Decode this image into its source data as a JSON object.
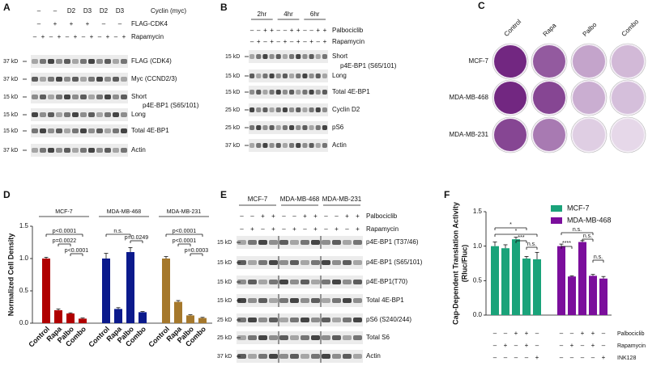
{
  "panels": {
    "A": {
      "letter": "A",
      "header_rows": [
        {
          "label": "Cyclin (myc)",
          "signs": [
            "–",
            "–",
            "D2",
            "D3",
            "D2",
            "D3"
          ]
        },
        {
          "label": "FLAG-CDK4",
          "signs": [
            "–",
            "+",
            "+",
            "+",
            "–",
            "–"
          ]
        },
        {
          "label": "Rapamycin",
          "signs": [
            "–",
            "+",
            "–",
            "+",
            "–",
            "+",
            "–",
            "+",
            "–",
            "+",
            "–",
            "+"
          ]
        }
      ],
      "blots": [
        {
          "kd": "37 kD",
          "label": "FLAG (CDK4)"
        },
        {
          "kd": "37 kD",
          "label": "Myc (CCND2/3)"
        },
        {
          "kd": "15 kD",
          "label": "Short"
        },
        {
          "kd": "15 kD",
          "label": "Long"
        },
        {
          "kd": "15 kD",
          "label": "Total 4E-BP1"
        },
        {
          "kd": "37 kD",
          "label": "Actin"
        }
      ],
      "group_label": "p4E-BP1 (S65/101)"
    },
    "B": {
      "letter": "B",
      "time_points": [
        "2hr",
        "4hr",
        "6hr"
      ],
      "header_rows": [
        {
          "label": "Palbociclib",
          "signs": [
            "–",
            "–",
            "+",
            "+",
            "–",
            "–",
            "+",
            "+",
            "–",
            "–",
            "+",
            "+"
          ]
        },
        {
          "label": "Rapamycin",
          "signs": [
            "–",
            "+",
            "–",
            "+",
            "–",
            "+",
            "–",
            "+",
            "–",
            "+",
            "–",
            "+"
          ]
        }
      ],
      "blots": [
        {
          "kd": "15 kD",
          "label": "Short"
        },
        {
          "kd": "15 kD",
          "label": "Long"
        },
        {
          "kd": "15 kD",
          "label": "Total 4E-BP1"
        },
        {
          "kd": "25 kD",
          "label": "Cyclin D2"
        },
        {
          "kd": "25 kD",
          "label": "pS6"
        },
        {
          "kd": "37 kD",
          "label": "Actin"
        }
      ],
      "group_label": "p4E-BP1 (S65/101)"
    },
    "C": {
      "letter": "C",
      "columns": [
        "Control",
        "Rapa",
        "Palbo",
        "Combo"
      ],
      "rows": [
        "MCF-7",
        "MDA-MB-468",
        "MDA-MB-231"
      ]
    },
    "E": {
      "letter": "E",
      "cell_lines": [
        "MCF-7",
        "MDA-MB-468",
        "MDA-MB-231"
      ],
      "header_rows": [
        {
          "label": "Palbociclib",
          "signs": [
            "–",
            "–",
            "+",
            "+",
            "–",
            "–",
            "+",
            "+",
            "–",
            "–",
            "+",
            "+"
          ]
        },
        {
          "label": "Rapamycin",
          "signs": [
            "–",
            "+",
            "–",
            "+",
            "–",
            "+",
            "–",
            "+",
            "–",
            "+",
            "–",
            "+"
          ]
        }
      ],
      "blots": [
        {
          "kd": "15 kD",
          "label": "p4E-BP1 (T37/46)"
        },
        {
          "kd": "15 kD",
          "label": "p4E-BP1 (S65/101)"
        },
        {
          "kd": "15 kD",
          "label": "p4E-BP1(T70)"
        },
        {
          "kd": "15 kD",
          "label": "Total 4E-BP1"
        },
        {
          "kd": "25 kD",
          "label": "pS6 (S240/244)"
        },
        {
          "kd": "25 kD",
          "label": "Total S6"
        },
        {
          "kd": "37 kD",
          "label": "Actin"
        }
      ]
    }
  },
  "chart_data": [
    {
      "type": "bar",
      "letter": "D",
      "ylabel": "Normalized Cell Density",
      "ylim": [
        0,
        1.5
      ],
      "yticks": [
        {
          "value": 0,
          "label": "0.0"
        },
        {
          "value": 0.5,
          "label": "0.5"
        },
        {
          "value": 1,
          "label": "1.0"
        },
        {
          "value": 1.5,
          "label": "1.5"
        }
      ],
      "categories": [
        "Control",
        "Rapa",
        "Palbo",
        "Combo"
      ],
      "series": [
        {
          "name": "MCF-7",
          "color": "#b00000",
          "values": [
            1.0,
            0.2,
            0.15,
            0.07
          ],
          "errors": [
            0.02,
            0.02,
            0.01,
            0.01
          ],
          "annotations": [
            "p<0.0001",
            "p=0.0022",
            "p<0.0001"
          ]
        },
        {
          "name": "MDA-MB-468",
          "color": "#0b1a8c",
          "values": [
            1.0,
            0.22,
            1.1,
            0.17
          ],
          "errors": [
            0.08,
            0.02,
            0.07,
            0.01
          ],
          "annotations": [
            "n.s.",
            "p=0.0249"
          ]
        },
        {
          "name": "MDA-MB-231",
          "color": "#a5782c",
          "values": [
            1.0,
            0.33,
            0.12,
            0.08
          ],
          "errors": [
            0.03,
            0.02,
            0.01,
            0.01
          ],
          "annotations": [
            "p<0.0001",
            "p<0.0001",
            "p=0.0003"
          ]
        }
      ]
    },
    {
      "type": "bar",
      "letter": "F",
      "ylabel": [
        "Cap-Dependent Translation Activity",
        "(Rluc/Fluc)"
      ],
      "ylim": [
        0,
        1.5
      ],
      "yticks": [
        {
          "value": 0,
          "label": "0.0"
        },
        {
          "value": 0.5,
          "label": "0.5"
        },
        {
          "value": 1,
          "label": "1.0"
        },
        {
          "value": 1.5,
          "label": "1.5"
        }
      ],
      "conditions": [
        {
          "label": "Palbociclib",
          "signs": [
            "–",
            "–",
            "+",
            "+",
            "–"
          ]
        },
        {
          "label": "Rapamycin",
          "signs": [
            "–",
            "+",
            "–",
            "+",
            "–"
          ]
        },
        {
          "label": "INK128",
          "signs": [
            "–",
            "–",
            "–",
            "–",
            "+"
          ]
        }
      ],
      "legend": "top-right",
      "series": [
        {
          "name": "MCF-7",
          "color": "#1aa37a",
          "values": [
            1.0,
            0.97,
            1.1,
            0.82,
            0.81
          ],
          "errors": [
            0.06,
            0.05,
            0.03,
            0.03,
            0.1
          ],
          "annotations": [
            "*",
            "*",
            "***",
            "n.s."
          ]
        },
        {
          "name": "MDA-MB-468",
          "color": "#7b0e9c",
          "values": [
            1.0,
            0.56,
            1.06,
            0.57,
            0.53
          ],
          "errors": [
            0.03,
            0.01,
            0.02,
            0.02,
            0.03
          ],
          "annotations": [
            "****",
            "n.s.",
            "n.s.",
            "n.s."
          ]
        }
      ]
    }
  ]
}
